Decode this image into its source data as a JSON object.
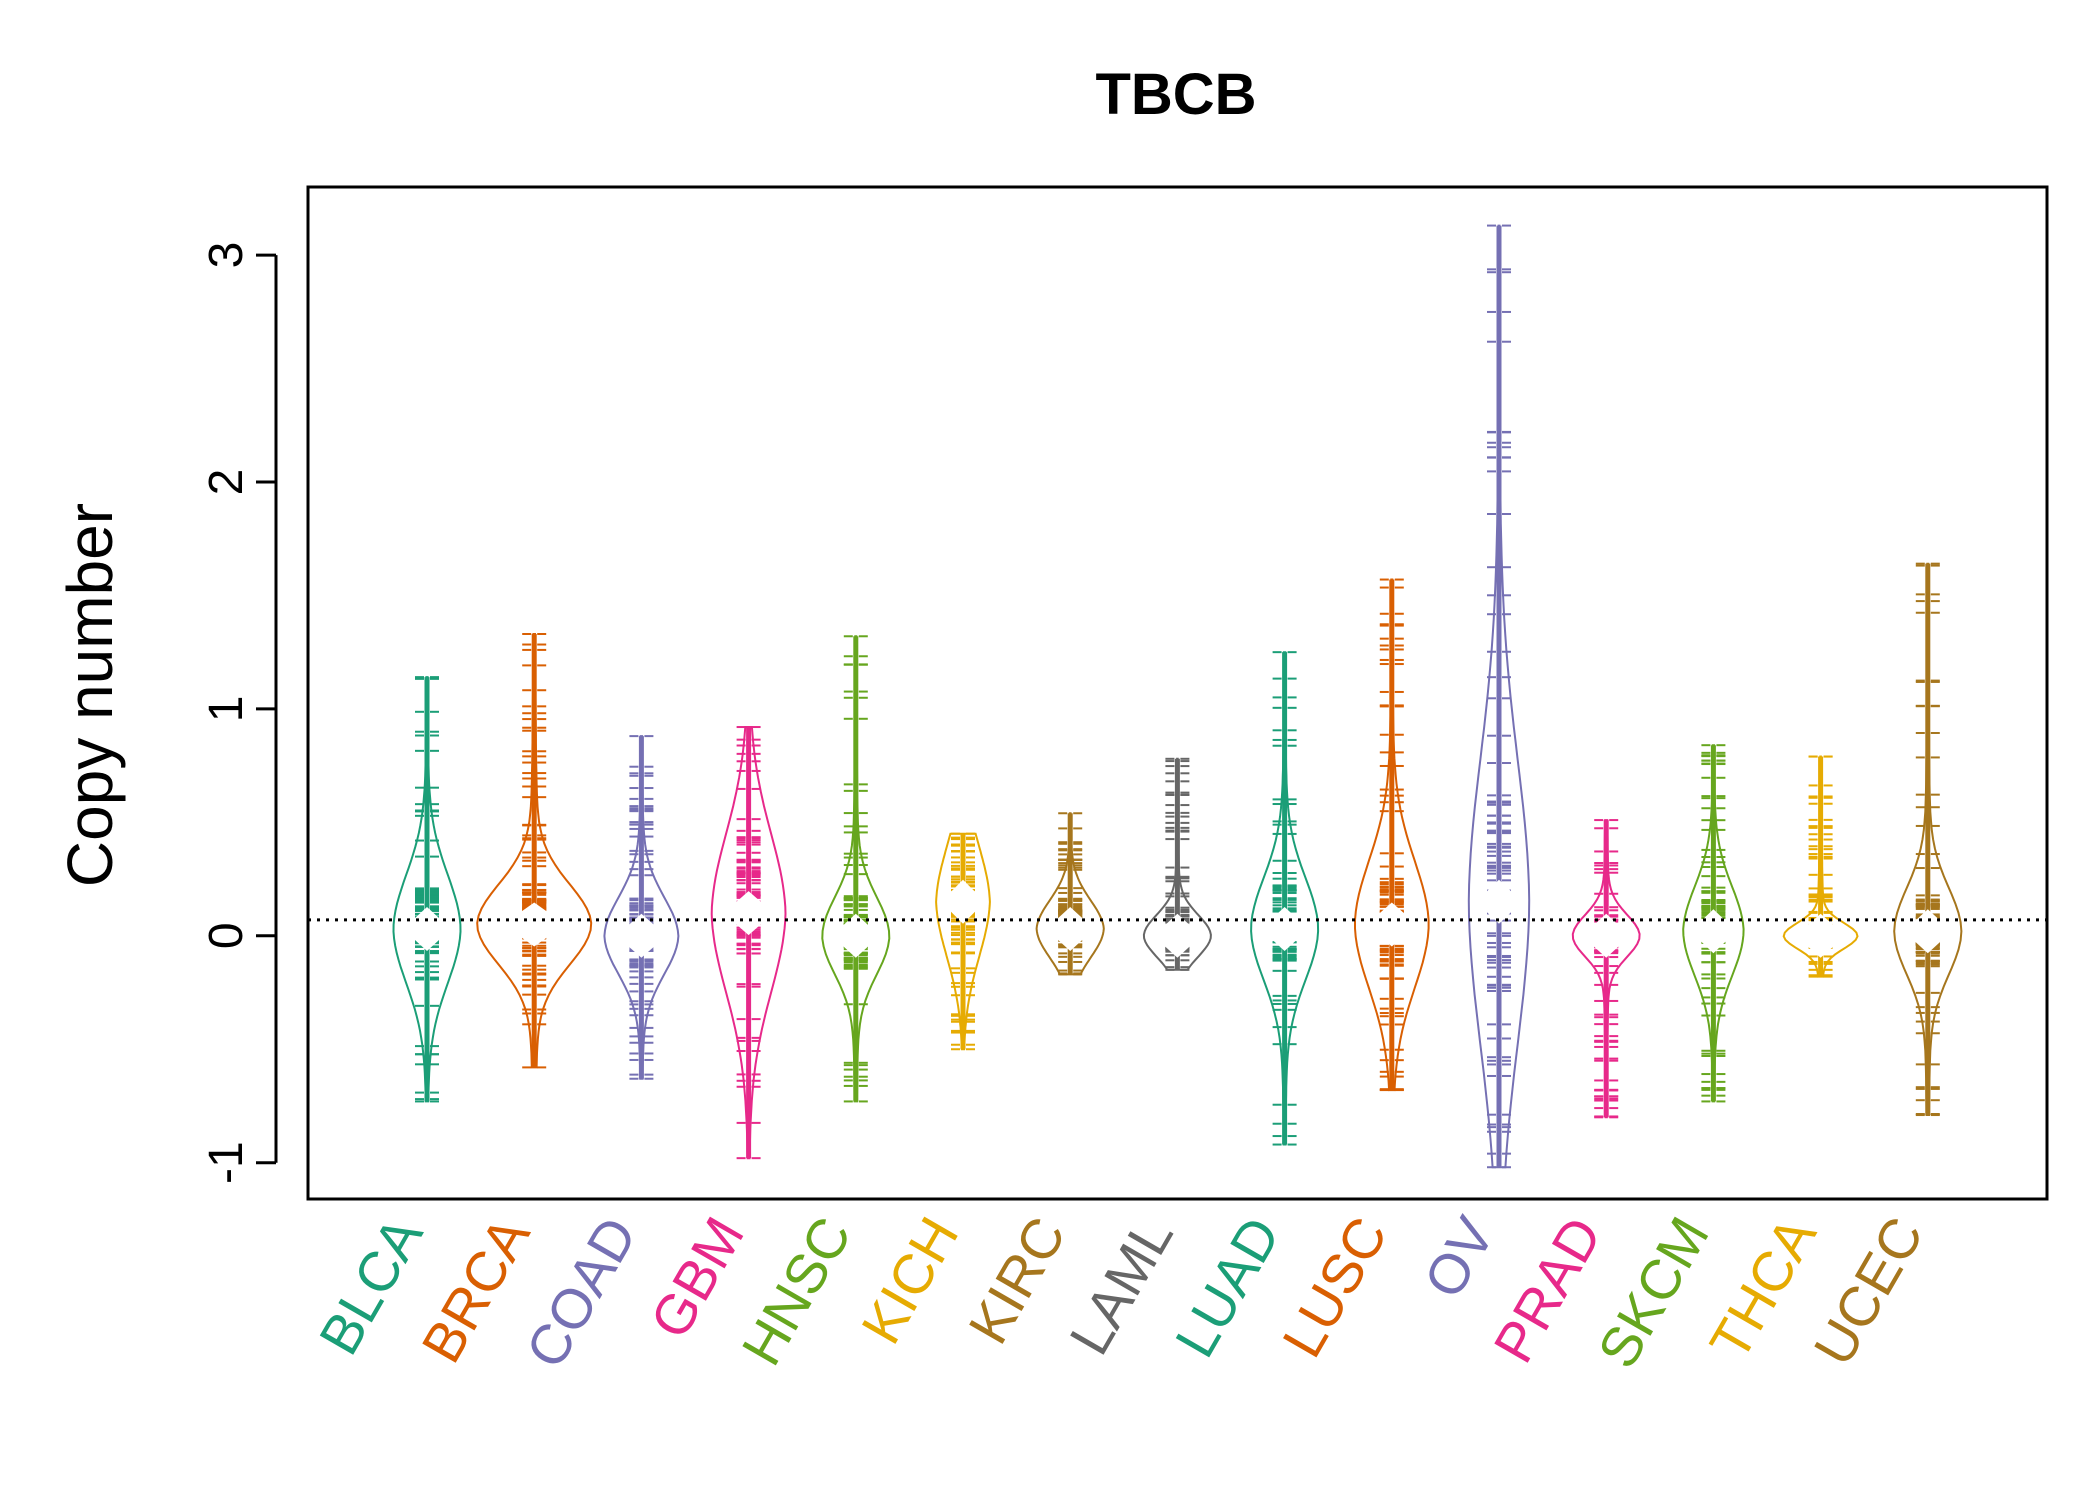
{
  "chart_data": {
    "type": "bean",
    "title": "TBCB",
    "xlabel": "",
    "ylabel": "Copy number",
    "ylim": [
      -1.16,
      3.3
    ],
    "yticks": [
      -1,
      0,
      1,
      2,
      3
    ],
    "reference_line": 0.07,
    "grid": false,
    "legend": "none",
    "categories": [
      {
        "name": "BLCA",
        "color": "#1b9e77",
        "min": -0.73,
        "max": 1.14,
        "q1": -0.12,
        "median": 0.03,
        "q3": 0.22,
        "width": 1.0
      },
      {
        "name": "BRCA",
        "color": "#d95f02",
        "min": -0.58,
        "max": 1.33,
        "q1": -0.05,
        "median": 0.05,
        "q3": 0.2,
        "width": 1.7
      },
      {
        "name": "COAD",
        "color": "#7570b3",
        "min": -0.63,
        "max": 0.88,
        "q1": -0.12,
        "median": 0.0,
        "q3": 0.12,
        "width": 1.1
      },
      {
        "name": "GBM",
        "color": "#e7298a",
        "min": -0.98,
        "max": 0.92,
        "q1": -0.05,
        "median": 0.1,
        "q3": 0.45,
        "width": 1.1
      },
      {
        "name": "HNSC",
        "color": "#66a61e",
        "min": -0.73,
        "max": 1.32,
        "q1": -0.12,
        "median": 0.0,
        "q3": 0.12,
        "width": 1.0
      },
      {
        "name": "KICH",
        "color": "#e6ab02",
        "min": -0.5,
        "max": 0.45,
        "q1": -0.05,
        "median": 0.15,
        "q3": 0.3,
        "width": 0.8
      },
      {
        "name": "KIRC",
        "color": "#a6761d",
        "min": -0.17,
        "max": 0.54,
        "q1": -0.03,
        "median": 0.03,
        "q3": 0.15,
        "width": 1.0
      },
      {
        "name": "LAML",
        "color": "#666666",
        "min": -0.15,
        "max": 0.78,
        "q1": -0.05,
        "median": 0.0,
        "q3": 0.08,
        "width": 1.0
      },
      {
        "name": "LUAD",
        "color": "#1b9e77",
        "min": -0.92,
        "max": 1.25,
        "q1": -0.12,
        "median": 0.03,
        "q3": 0.2,
        "width": 1.0
      },
      {
        "name": "LUSC",
        "color": "#d95f02",
        "min": -0.68,
        "max": 1.57,
        "q1": -0.15,
        "median": 0.05,
        "q3": 0.25,
        "width": 1.1
      },
      {
        "name": "OV",
        "color": "#7570b3",
        "min": -1.02,
        "max": 3.13,
        "q1": -0.3,
        "median": 0.15,
        "q3": 0.6,
        "width": 0.9
      },
      {
        "name": "PRAD",
        "color": "#e7298a",
        "min": -0.8,
        "max": 0.51,
        "q1": -0.08,
        "median": 0.0,
        "q3": 0.05,
        "width": 1.0
      },
      {
        "name": "SKCM",
        "color": "#66a61e",
        "min": -0.73,
        "max": 0.84,
        "q1": -0.1,
        "median": 0.02,
        "q3": 0.18,
        "width": 0.9
      },
      {
        "name": "THCA",
        "color": "#e6ab02",
        "min": -0.18,
        "max": 0.79,
        "q1": -0.03,
        "median": 0.0,
        "q3": 0.05,
        "width": 1.1
      },
      {
        "name": "UCEC",
        "color": "#a6761d",
        "min": -0.79,
        "max": 1.64,
        "q1": -0.12,
        "median": 0.02,
        "q3": 0.15,
        "width": 1.0
      }
    ]
  }
}
